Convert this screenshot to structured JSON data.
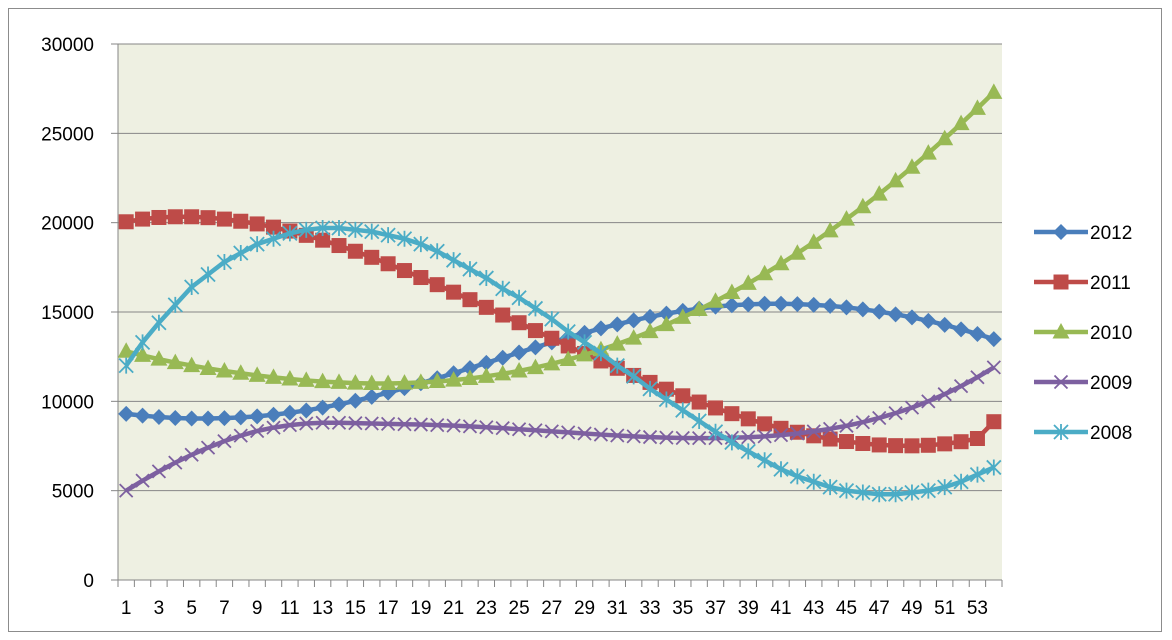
{
  "chart_data": {
    "type": "line",
    "title": "",
    "xlabel": "",
    "ylabel": "",
    "x": [
      1,
      2,
      3,
      4,
      5,
      6,
      7,
      8,
      9,
      10,
      11,
      12,
      13,
      14,
      15,
      16,
      17,
      18,
      19,
      20,
      21,
      22,
      23,
      24,
      25,
      26,
      27,
      28,
      29,
      30,
      31,
      32,
      33,
      34,
      35,
      36,
      37,
      38,
      39,
      40,
      41,
      42,
      43,
      44,
      45,
      46,
      47,
      48,
      49,
      50,
      51,
      52,
      53,
      54
    ],
    "x_tick_labels": [
      "1",
      "3",
      "5",
      "7",
      "9",
      "11",
      "13",
      "15",
      "17",
      "19",
      "21",
      "23",
      "25",
      "27",
      "29",
      "31",
      "33",
      "35",
      "37",
      "39",
      "41",
      "43",
      "45",
      "47",
      "49",
      "51",
      "53"
    ],
    "ylim": [
      0,
      30000
    ],
    "y_ticks": [
      0,
      5000,
      10000,
      15000,
      20000,
      25000,
      30000
    ],
    "grid": "horizontal",
    "plot_background": "#eef0e2",
    "legend_position": "right",
    "series": [
      {
        "name": "2012",
        "color": "#4a7ebb",
        "marker": "diamond",
        "values": [
          9300,
          9200,
          9120,
          9070,
          9040,
          9040,
          9060,
          9100,
          9160,
          9250,
          9360,
          9490,
          9650,
          9830,
          10030,
          10250,
          10490,
          10740,
          11010,
          11290,
          11570,
          11860,
          12150,
          12440,
          12730,
          13020,
          13300,
          13570,
          13830,
          14080,
          14310,
          14530,
          14730,
          14910,
          15060,
          15190,
          15300,
          15380,
          15430,
          15460,
          15460,
          15440,
          15400,
          15340,
          15260,
          15150,
          15020,
          14870,
          14700,
          14500,
          14280,
          14030,
          13770,
          13480
        ]
      },
      {
        "name": "2011",
        "color": "#be4b48",
        "marker": "square",
        "values": [
          20050,
          20200,
          20290,
          20330,
          20330,
          20280,
          20200,
          20080,
          19930,
          19750,
          19530,
          19290,
          19020,
          18720,
          18400,
          18060,
          17700,
          17320,
          16930,
          16530,
          16110,
          15690,
          15260,
          14830,
          14400,
          13960,
          13530,
          13100,
          12680,
          12260,
          11850,
          11450,
          11060,
          10680,
          10310,
          9960,
          9630,
          9310,
          9020,
          8740,
          8490,
          8270,
          8070,
          7890,
          7750,
          7640,
          7560,
          7520,
          7510,
          7540,
          7620,
          7740,
          7920,
          8860
        ]
      },
      {
        "name": "2010",
        "color": "#98b954",
        "marker": "triangle",
        "values": [
          12800,
          12570,
          12360,
          12170,
          12000,
          11840,
          11700,
          11570,
          11450,
          11340,
          11250,
          11170,
          11100,
          11060,
          11020,
          11000,
          11000,
          11020,
          11060,
          11110,
          11190,
          11280,
          11400,
          11540,
          11700,
          11890,
          12100,
          12340,
          12600,
          12890,
          13200,
          13540,
          13900,
          14290,
          14700,
          15140,
          15600,
          16090,
          16600,
          17140,
          17700,
          18290,
          18900,
          19540,
          20200,
          20890,
          21600,
          22340,
          23100,
          23890,
          24700,
          25540,
          26400,
          27290
        ]
      },
      {
        "name": "2009",
        "color": "#7d60a0",
        "marker": "x",
        "values": [
          5000,
          5560,
          6080,
          6570,
          7010,
          7410,
          7770,
          8080,
          8340,
          8530,
          8670,
          8760,
          8800,
          8800,
          8780,
          8760,
          8740,
          8720,
          8700,
          8670,
          8640,
          8600,
          8550,
          8500,
          8440,
          8380,
          8320,
          8260,
          8200,
          8140,
          8090,
          8040,
          8000,
          7970,
          7950,
          7940,
          7940,
          7960,
          7990,
          8040,
          8110,
          8200,
          8320,
          8460,
          8630,
          8830,
          9070,
          9340,
          9650,
          10000,
          10400,
          10850,
          11350,
          11900
        ]
      },
      {
        "name": "2008",
        "color": "#4bacc6",
        "marker": "asterisk",
        "values": [
          12000,
          13300,
          14400,
          15400,
          16400,
          17100,
          17800,
          18300,
          18800,
          19100,
          19400,
          19600,
          19700,
          19700,
          19600,
          19500,
          19300,
          19100,
          18800,
          18400,
          17900,
          17400,
          16900,
          16300,
          15800,
          15200,
          14600,
          13900,
          13300,
          12700,
          12000,
          11400,
          10700,
          10100,
          9500,
          8900,
          8300,
          7700,
          7200,
          6700,
          6200,
          5800,
          5500,
          5200,
          5000,
          4900,
          4800,
          4800,
          4900,
          5000,
          5200,
          5500,
          5900,
          6300
        ]
      }
    ]
  }
}
